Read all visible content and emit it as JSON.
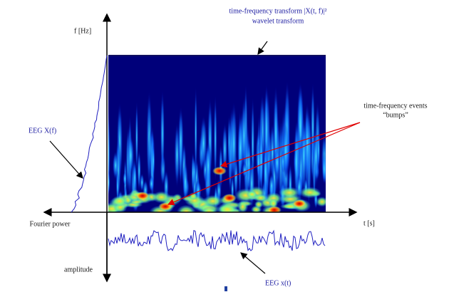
{
  "axes": {
    "y_label": "f [Hz]",
    "x_label": "t [s]",
    "left_label": "Fourier power",
    "bottom_label": "amplitude"
  },
  "annotations": {
    "transform_line1": "time-frequency transform |X(t, f)|²",
    "transform_line2": "wavelet transform",
    "events_line1": "time-frequency events",
    "events_line2": "“bumps”",
    "spectrum": "EEG X(f)",
    "signal": "EEG x(t)"
  }
}
